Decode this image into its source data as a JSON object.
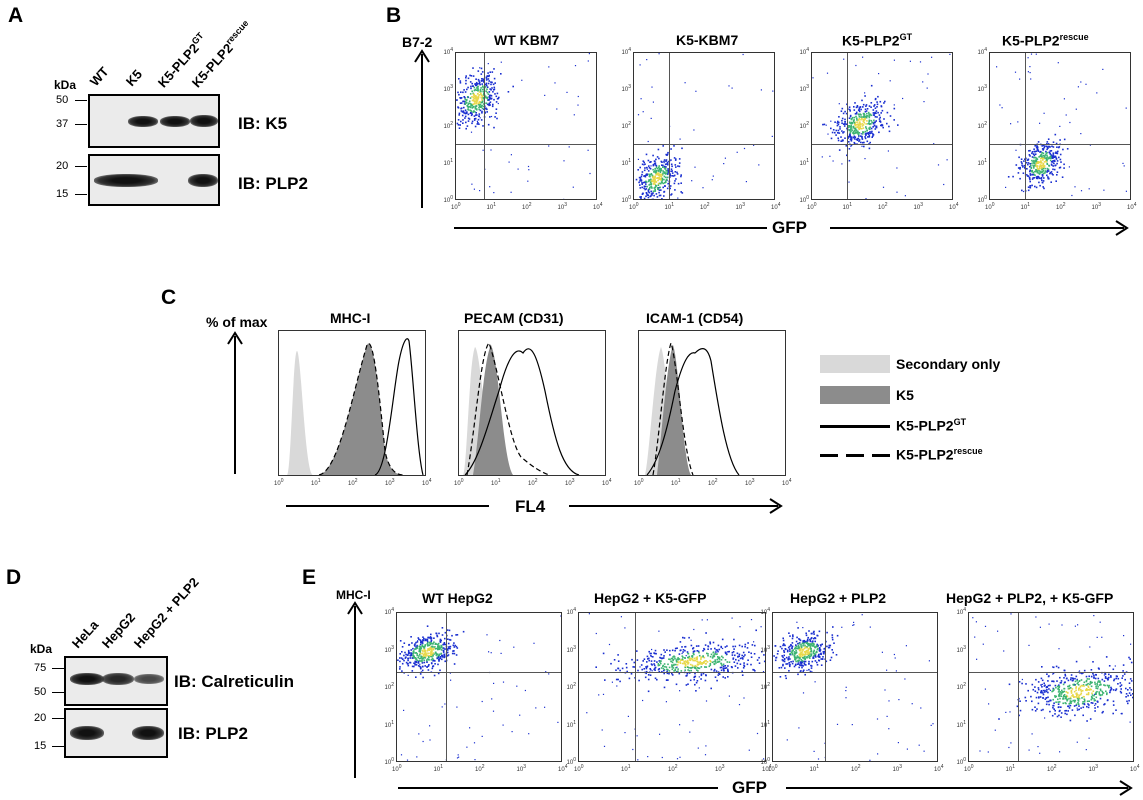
{
  "panels": {
    "A": {
      "letter": "A",
      "kda_label": "kDa",
      "lanes": [
        "WT",
        "K5",
        "K5-PLP2",
        "K5-PLP2"
      ],
      "lane_sups": [
        "",
        "",
        "GT",
        "rescue"
      ],
      "markers_top": [
        "50",
        "37"
      ],
      "markers_bottom": [
        "20",
        "15"
      ],
      "ib_top": "IB: K5",
      "ib_bottom": "IB: PLP2"
    },
    "B": {
      "letter": "B",
      "y_axis": "B7-2",
      "x_axis": "GFP",
      "plots": [
        {
          "title": "WT KBM7",
          "sup": ""
        },
        {
          "title": "K5-KBM7",
          "sup": ""
        },
        {
          "title": "K5-PLP2",
          "sup": "GT"
        },
        {
          "title": "K5-PLP2",
          "sup": "rescue"
        }
      ]
    },
    "C": {
      "letter": "C",
      "y_axis": "% of max",
      "x_axis": "FL4",
      "plots": [
        "MHC-I",
        "PECAM (CD31)",
        "ICAM-1 (CD54)"
      ],
      "legend": [
        {
          "label": "Secondary only",
          "sup": "",
          "style": "light-fill"
        },
        {
          "label": "K5",
          "sup": "",
          "style": "dark-fill"
        },
        {
          "label": "K5-PLP2",
          "sup": "GT",
          "style": "solid"
        },
        {
          "label": "K5-PLP2",
          "sup": "rescue",
          "style": "dashed"
        }
      ]
    },
    "D": {
      "letter": "D",
      "kda_label": "kDa",
      "lanes": [
        "HeLa",
        "HepG2",
        "HepG2 + PLP2"
      ],
      "markers_top": [
        "75",
        "50"
      ],
      "markers_bottom": [
        "20",
        "15"
      ],
      "ib_top": "IB: Calreticulin",
      "ib_bottom": "IB: PLP2"
    },
    "E": {
      "letter": "E",
      "y_axis": "MHC-I",
      "x_axis": "GFP",
      "plots": [
        "WT HepG2",
        "HepG2 + K5-GFP",
        "HepG2 + PLP2",
        "HepG2 + PLP2, + K5-GFP"
      ]
    }
  },
  "log_ticks": [
    "10",
    "10",
    "10",
    "10",
    "10"
  ],
  "log_exps": [
    "0",
    "1",
    "2",
    "3",
    "4"
  ],
  "colors": {
    "light_fill": "#d9d9d9",
    "dark_fill": "#8c8c8c",
    "dot_blue": "#1a2fd0",
    "dot_green": "#3cb371",
    "dot_yellow": "#e8d84a"
  }
}
